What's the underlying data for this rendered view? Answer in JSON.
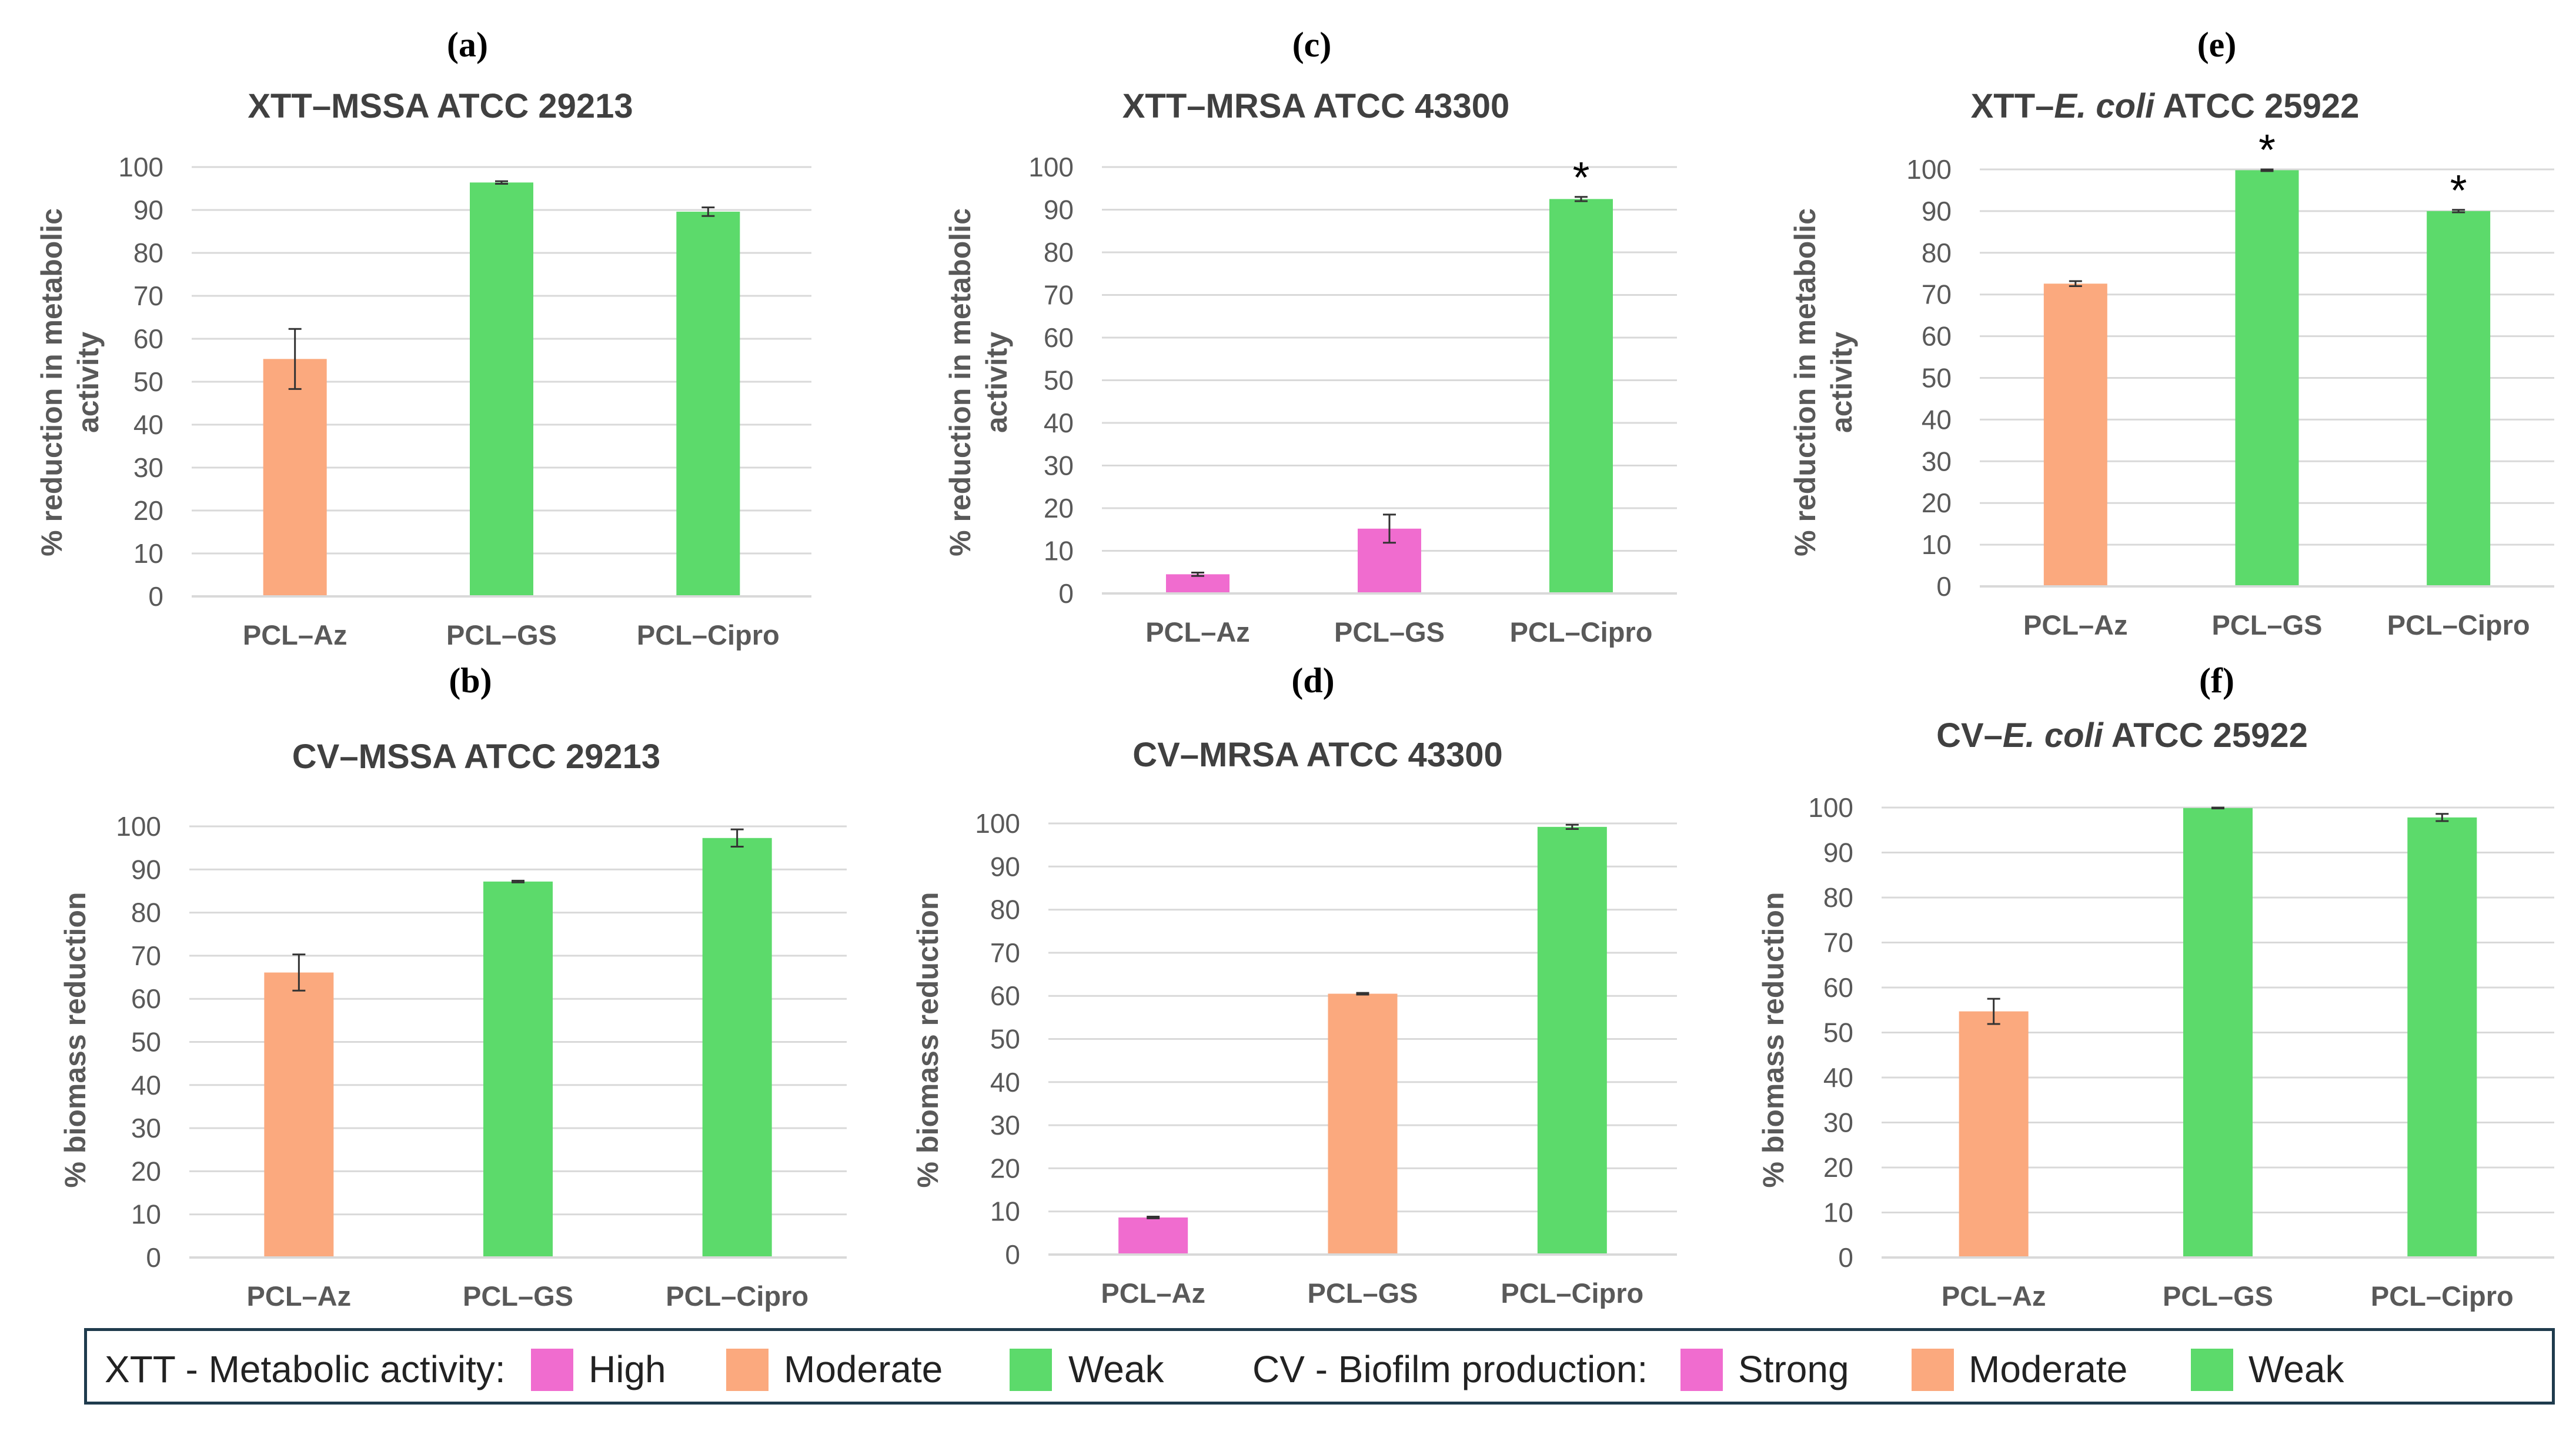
{
  "colors": {
    "high": "#F06CCF",
    "moderate": "#FBA97E",
    "weak": "#5CDA6B",
    "grid": "#d9d9d9",
    "axis_text": "#595959",
    "title_text": "#404040",
    "legend_border": "#1f3b4d"
  },
  "legend": {
    "xtt_label": "XTT - Metabolic activity:",
    "xtt_high": "High",
    "xtt_moderate": "Moderate",
    "xtt_weak": "Weak",
    "cv_label": "CV - Biofilm production:",
    "cv_strong": "Strong",
    "cv_moderate": "Moderate",
    "cv_weak": "Weak"
  },
  "chart_data": [
    {
      "panel": "(a)",
      "type": "bar",
      "title": "XTT–MSSA ATCC 29213",
      "ylabel": "% reduction in metabolic activity",
      "categories": [
        "PCL–Az",
        "PCL–GS",
        "PCL–Cipro"
      ],
      "values": [
        55.3,
        96.4,
        89.6
      ],
      "errors": [
        7.0,
        0.3,
        1.0
      ],
      "classes": [
        "moderate",
        "weak",
        "weak"
      ],
      "significant": [
        false,
        false,
        false
      ],
      "ylim": [
        0,
        100
      ],
      "yticks": [
        0,
        10,
        20,
        30,
        40,
        50,
        60,
        70,
        80,
        90,
        100
      ],
      "grid": true
    },
    {
      "panel": "(c)",
      "type": "bar",
      "title": "XTT–MRSA ATCC 43300",
      "ylabel": "% reduction in metabolic activity",
      "categories": [
        "PCL–Az",
        "PCL–GS",
        "PCL–Cipro"
      ],
      "values": [
        4.5,
        15.2,
        92.5
      ],
      "errors": [
        0.4,
        3.3,
        0.5
      ],
      "classes": [
        "high",
        "high",
        "weak"
      ],
      "significant": [
        false,
        false,
        true
      ],
      "ylim": [
        0,
        100
      ],
      "yticks": [
        0,
        10,
        20,
        30,
        40,
        50,
        60,
        70,
        80,
        90,
        100
      ],
      "grid": true
    },
    {
      "panel": "(e)",
      "type": "bar",
      "title": "XTT–E. coli ATCC 25922",
      "ylabel": "% reduction in metabolic activity",
      "categories": [
        "PCL–Az",
        "PCL–GS",
        "PCL–Cipro"
      ],
      "values": [
        72.6,
        99.8,
        90.0
      ],
      "errors": [
        0.6,
        0.2,
        0.3
      ],
      "classes": [
        "moderate",
        "weak",
        "weak"
      ],
      "significant": [
        false,
        true,
        true
      ],
      "ylim": [
        0,
        100
      ],
      "yticks": [
        0,
        10,
        20,
        30,
        40,
        50,
        60,
        70,
        80,
        90,
        100
      ],
      "grid": true
    },
    {
      "panel": "(b)",
      "type": "bar",
      "title": "CV–MSSA ATCC 29213",
      "ylabel": "% biomass reduction",
      "categories": [
        "PCL–Az",
        "PCL–GS",
        "PCL–Cipro"
      ],
      "values": [
        66.1,
        87.2,
        97.3
      ],
      "errors": [
        4.2,
        0.2,
        2.0
      ],
      "classes": [
        "moderate",
        "weak",
        "weak"
      ],
      "significant": [
        false,
        false,
        false
      ],
      "ylim": [
        0,
        100
      ],
      "yticks": [
        0,
        10,
        20,
        30,
        40,
        50,
        60,
        70,
        80,
        90,
        100
      ],
      "grid": true
    },
    {
      "panel": "(d)",
      "type": "bar",
      "title": "CV–MRSA ATCC 43300",
      "ylabel": "% biomass reduction",
      "categories": [
        "PCL–Az",
        "PCL–GS",
        "PCL–Cipro"
      ],
      "values": [
        8.6,
        60.5,
        99.2
      ],
      "errors": [
        0.2,
        0.2,
        0.5
      ],
      "classes": [
        "high",
        "moderate",
        "weak"
      ],
      "significant": [
        false,
        false,
        false
      ],
      "ylim": [
        0,
        100
      ],
      "yticks": [
        0,
        10,
        20,
        30,
        40,
        50,
        60,
        70,
        80,
        90,
        100
      ],
      "grid": true
    },
    {
      "panel": "(f)",
      "type": "bar",
      "title": "CV–E. coli ATCC 25922",
      "ylabel": "% biomass reduction",
      "categories": [
        "PCL–Az",
        "PCL–GS",
        "PCL–Cipro"
      ],
      "values": [
        54.7,
        99.9,
        97.8
      ],
      "errors": [
        2.8,
        0.1,
        0.8
      ],
      "classes": [
        "moderate",
        "weak",
        "weak"
      ],
      "significant": [
        false,
        false,
        false
      ],
      "ylim": [
        0,
        100
      ],
      "yticks": [
        0,
        10,
        20,
        30,
        40,
        50,
        60,
        70,
        80,
        90,
        100
      ],
      "grid": true
    }
  ]
}
